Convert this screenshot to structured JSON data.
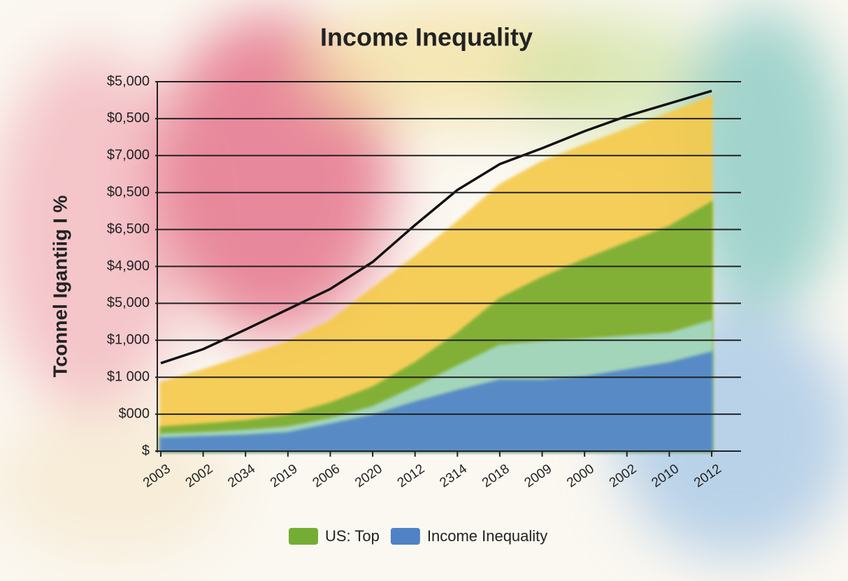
{
  "chart_data": {
    "type": "area",
    "title": "Income Inequality",
    "y_label": "Tconnel Igantiig I %",
    "categories": [
      "2003",
      "2002",
      "2034",
      "2019",
      "2006",
      "2020",
      "2012",
      "2314",
      "2018",
      "2009",
      "2000",
      "2002",
      "2010",
      "2012"
    ],
    "ylim": [
      0,
      10
    ],
    "yticks": [
      {
        "value": 0,
        "label": "$"
      },
      {
        "value": 1,
        "label": "$000"
      },
      {
        "value": 2,
        "label": "$1 000"
      },
      {
        "value": 3,
        "label": "$1,000"
      },
      {
        "value": 4,
        "label": "$5,000"
      },
      {
        "value": 5,
        "label": "$4,900"
      },
      {
        "value": 6,
        "label": "$6,500"
      },
      {
        "value": 7,
        "label": "$0,500"
      },
      {
        "value": 8,
        "label": "$7,000"
      },
      {
        "value": 9,
        "label": "$0,500"
      },
      {
        "value": 10,
        "label": "$5,000"
      }
    ],
    "grid": true,
    "series": [
      {
        "kind": "area",
        "color": "#f4c94a",
        "values": [
          1.85,
          2.19,
          2.57,
          2.95,
          3.52,
          4.4,
          5.26,
          6.2,
          7.2,
          7.83,
          8.28,
          8.71,
          9.15,
          9.6
        ]
      },
      {
        "name": "US: Top",
        "kind": "area",
        "color": "#74ad33",
        "values": [
          0.64,
          0.72,
          0.81,
          0.96,
          1.29,
          1.72,
          2.38,
          3.18,
          4.12,
          4.69,
          5.18,
          5.63,
          6.07,
          6.73
        ]
      },
      {
        "kind": "area",
        "color": "#a6d9c9",
        "values": [
          0.45,
          0.49,
          0.55,
          0.64,
          0.87,
          1.19,
          1.72,
          2.29,
          2.85,
          2.95,
          3.02,
          3.1,
          3.18,
          3.52
        ]
      },
      {
        "name": "Income Inequality",
        "kind": "area",
        "color": "#4f83c6",
        "values": [
          0.34,
          0.38,
          0.42,
          0.49,
          0.72,
          0.96,
          1.32,
          1.63,
          1.91,
          1.91,
          2.0,
          2.19,
          2.38,
          2.67
        ]
      },
      {
        "kind": "line",
        "color": "#111111",
        "values": [
          2.38,
          2.76,
          3.29,
          3.84,
          4.39,
          5.12,
          6.12,
          7.07,
          7.77,
          8.2,
          8.66,
          9.07,
          9.41,
          9.75
        ]
      }
    ]
  }
}
